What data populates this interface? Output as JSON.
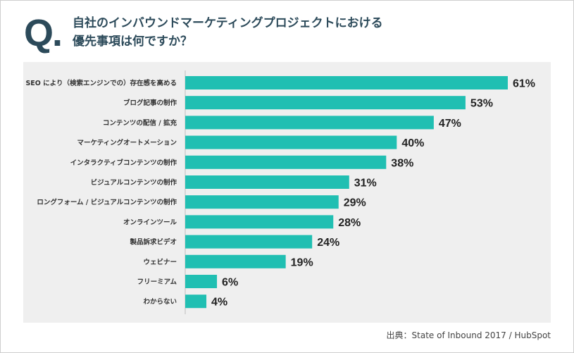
{
  "question": {
    "mark": "Q.",
    "line1": "自社のインバウンドマーケティングプロジェクトにおける",
    "line2": "優先事項は何ですか？"
  },
  "source": "出典：State of Inbound 2017 / HubSpot",
  "colors": {
    "bar": "#20bfb2",
    "title": "#2c4a5a",
    "panel": "#efefef"
  },
  "chart_data": {
    "type": "bar",
    "orientation": "horizontal",
    "categories": [
      "SEO により（検索エンジンでの）存在感を高める",
      "ブログ記事の制作",
      "コンテンツの配信 / 拡充",
      "マーケティングオートメーション",
      "インタラクティブコンテンツの制作",
      "ビジュアルコンテンツの制作",
      "ロングフォーム / ビジュアルコンテンツの制作",
      "オンラインツール",
      "製品訴求ビデオ",
      "ウェビナー",
      "フリーミアム",
      "わからない"
    ],
    "values": [
      61,
      53,
      47,
      40,
      38,
      31,
      29,
      28,
      24,
      19,
      6,
      4
    ],
    "value_labels": [
      "61%",
      "53%",
      "47%",
      "40%",
      "38%",
      "31%",
      "29%",
      "28%",
      "24%",
      "19%",
      "6%",
      "4%"
    ],
    "xlim": [
      0,
      61
    ]
  }
}
